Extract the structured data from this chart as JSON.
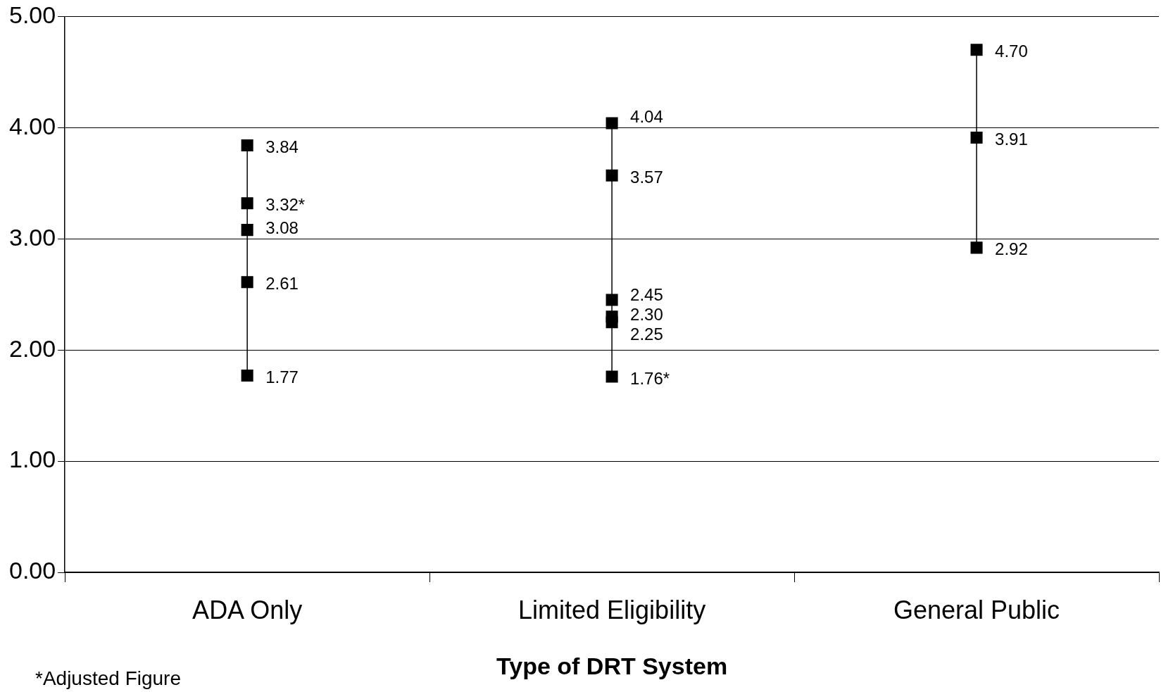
{
  "chart_data": {
    "type": "line",
    "xlabel": "Type of DRT System",
    "categories": [
      "ADA Only",
      "Limited Eligibility",
      "General Public"
    ],
    "series": [
      {
        "color": "#000000",
        "x": [
          "ADA Only",
          "ADA Only",
          "ADA Only",
          "ADA Only",
          "ADA Only"
        ],
        "values": [
          3.84,
          3.32,
          3.08,
          2.61,
          1.77
        ],
        "value_labels": [
          "3.84",
          "3.32*",
          "3.08",
          "2.61",
          "1.77"
        ]
      },
      {
        "color": "#000000",
        "x": [
          "Limited Eligibility",
          "Limited Eligibility",
          "Limited Eligibility",
          "Limited Eligibility",
          "Limited Eligibility",
          "Limited Eligibility"
        ],
        "values": [
          4.04,
          3.57,
          2.45,
          2.3,
          2.25,
          1.76
        ],
        "value_labels": [
          "4.04",
          "3.57",
          "2.45",
          "2.30",
          "2.25",
          "1.76*"
        ]
      },
      {
        "color": "#000000",
        "x": [
          "General Public",
          "General Public",
          "General Public"
        ],
        "values": [
          4.7,
          3.91,
          2.92
        ],
        "value_labels": [
          "4.70",
          "3.91",
          "2.92"
        ]
      }
    ],
    "ylim": [
      0,
      5
    ],
    "yticks": [
      {
        "value": 0,
        "label": "0.00"
      },
      {
        "value": 1,
        "label": "1.00"
      },
      {
        "value": 2,
        "label": "2.00"
      },
      {
        "value": 3,
        "label": "3.00"
      },
      {
        "value": 4,
        "label": "4.00"
      },
      {
        "value": 5,
        "label": "5.00"
      }
    ],
    "grid": "y",
    "legend": false,
    "marker": "square",
    "line_style": "solid",
    "annotations": [
      "*Adjusted Figure"
    ]
  }
}
